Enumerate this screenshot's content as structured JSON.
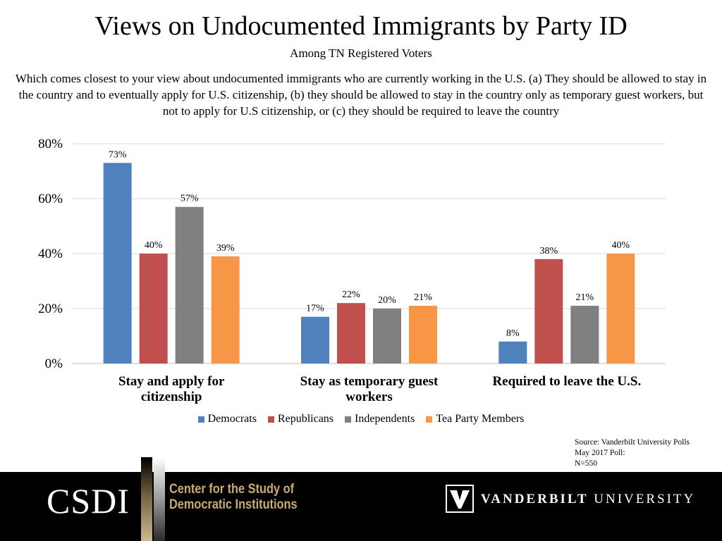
{
  "header": {
    "title": "Views on Undocumented Immigrants by Party ID",
    "subtitle": "Among TN Registered Voters",
    "question": "Which comes closest to your view about undocumented immigrants who are currently working in the U.S. (a) They should be allowed to stay in the country and to eventually apply for U.S. citizenship, (b) they should be allowed to stay in the country only as temporary guest workers, but not to apply for U.S citizenship, or (c) they should be required to leave the country"
  },
  "chart_data": {
    "type": "bar",
    "title": "Views on Undocumented Immigrants by Party ID",
    "subtitle": "Among TN Registered Voters",
    "categories": [
      [
        "Stay and apply for",
        "citizenship"
      ],
      [
        "Stay as temporary guest",
        "workers"
      ],
      [
        "Required to leave the U.S."
      ]
    ],
    "series": [
      {
        "name": "Democrats",
        "color": "#4f81bd",
        "values": [
          73,
          17,
          8
        ]
      },
      {
        "name": "Republicans",
        "color": "#c0504d",
        "values": [
          40,
          22,
          38
        ]
      },
      {
        "name": "Independents",
        "color": "#808080",
        "values": [
          57,
          20,
          21
        ]
      },
      {
        "name": "Tea Party Members",
        "color": "#f79646",
        "values": [
          39,
          21,
          40
        ]
      }
    ],
    "ylim": [
      0,
      80
    ],
    "yticks": [
      0,
      20,
      40,
      60,
      80
    ],
    "ytick_labels": [
      "0%",
      "20%",
      "40%",
      "60%",
      "80%"
    ],
    "value_suffix": "%",
    "grid": true,
    "legend": "bottom",
    "xlabel": "",
    "ylabel": ""
  },
  "source": {
    "line1": "Source: Vanderbilt University Polls",
    "line2": "May 2017 Poll:",
    "line3": "N=550"
  },
  "footer": {
    "csdi": "CSDI",
    "center_line1": "Center for the Study of",
    "center_line2": "Democratic Institutions",
    "vu_bold": "VANDERBILT",
    "vu_light": "UNIVERSITY",
    "colors": {
      "background": "#000000",
      "gold": "#c9ac6e"
    }
  }
}
